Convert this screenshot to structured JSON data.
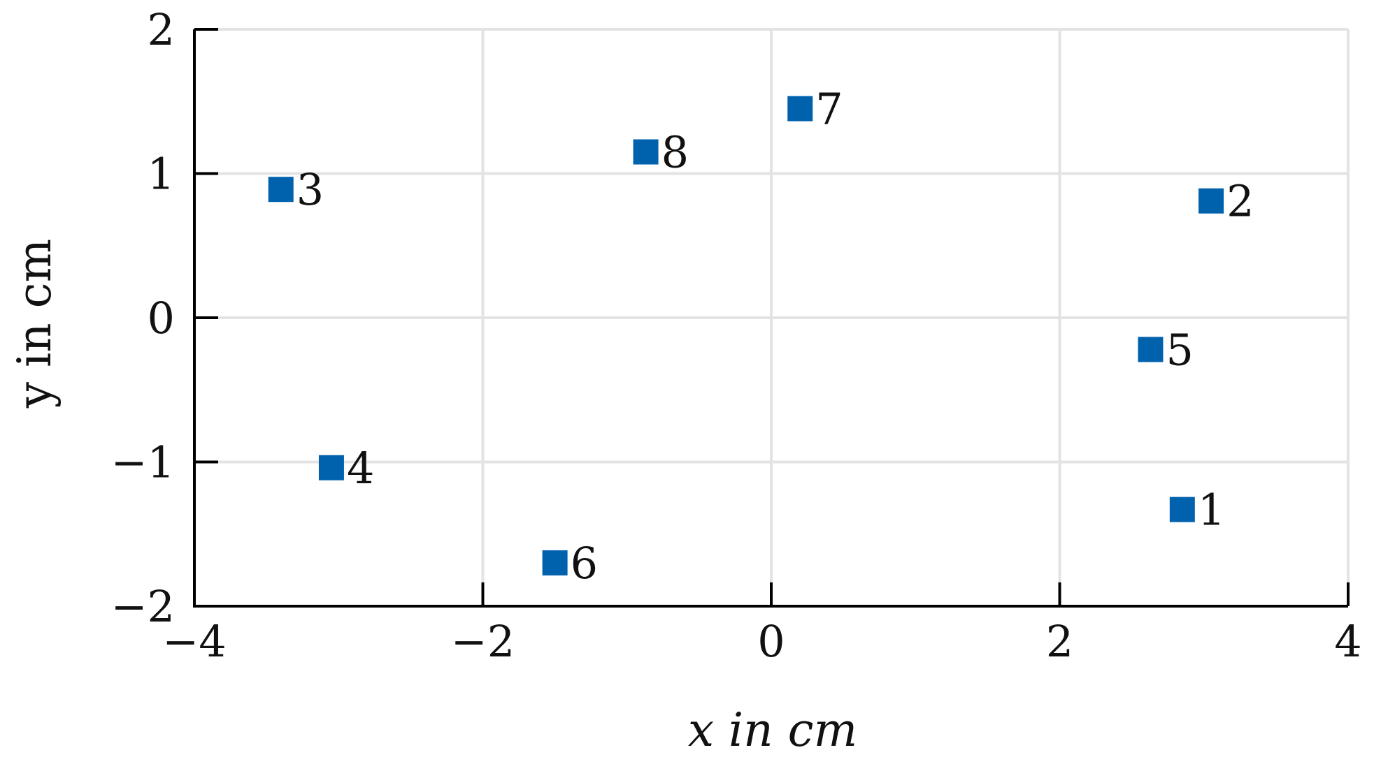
{
  "chart_data": {
    "type": "scatter",
    "title": "",
    "xlabel": "x in cm",
    "ylabel": "y in cm",
    "xlim": [
      -4,
      4
    ],
    "ylim": [
      -2,
      2
    ],
    "xticks": [
      -4,
      -2,
      0,
      2,
      4
    ],
    "yticks": [
      -2,
      -1,
      0,
      1,
      2
    ],
    "xtick_labels": [
      "−4",
      "−2",
      "0",
      "2",
      "4"
    ],
    "ytick_labels": [
      "−2",
      "−1",
      "0",
      "1",
      "2"
    ],
    "grid": true,
    "marker": "square",
    "color": "#0061AD",
    "points": [
      {
        "label": "1",
        "x": 2.85,
        "y": -1.33
      },
      {
        "label": "2",
        "x": 3.05,
        "y": 0.81
      },
      {
        "label": "3",
        "x": -3.4,
        "y": 0.89
      },
      {
        "label": "4",
        "x": -3.05,
        "y": -1.04
      },
      {
        "label": "5",
        "x": 2.63,
        "y": -0.22
      },
      {
        "label": "6",
        "x": -1.5,
        "y": -1.7
      },
      {
        "label": "7",
        "x": 0.2,
        "y": 1.45
      },
      {
        "label": "8",
        "x": -0.87,
        "y": 1.15
      }
    ]
  }
}
